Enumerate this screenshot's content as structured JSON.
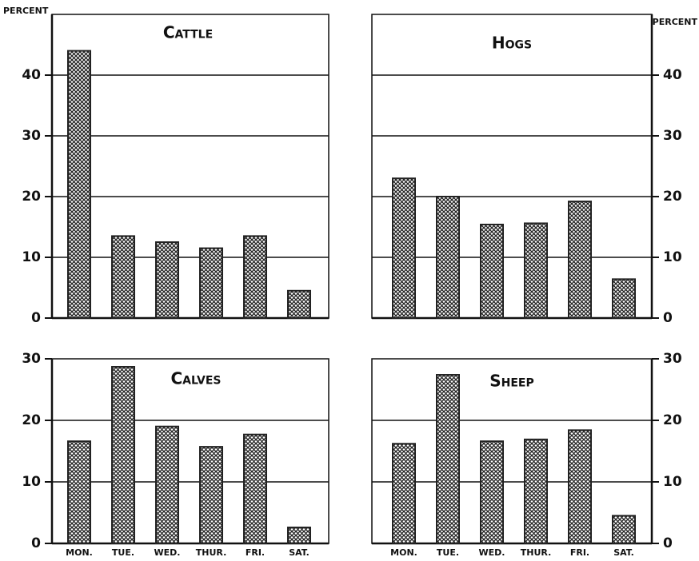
{
  "chart_data": [
    {
      "type": "bar",
      "title": "Cattle",
      "y_label": "PERCENT",
      "y_axis": "left",
      "values": [
        44,
        13.5,
        12.5,
        11.5,
        13.5,
        4.5
      ],
      "color": "#222222",
      "ylim": [
        0,
        50
      ],
      "yticks": [
        0,
        10,
        20,
        30,
        40
      ],
      "grid": true
    },
    {
      "type": "bar",
      "title": "Hogs",
      "y_label": "PERCENT",
      "y_axis": "right",
      "values": [
        23,
        20,
        15.4,
        15.6,
        19.2,
        6.4
      ],
      "color": "#222222",
      "ylim": [
        0,
        50
      ],
      "yticks": [
        0,
        10,
        20,
        30,
        40
      ],
      "grid": true
    },
    {
      "type": "bar",
      "title": "Calves",
      "y_axis": "left",
      "categories": [
        "MON.",
        "TUE.",
        "WED.",
        "THUR.",
        "FRI.",
        "SAT."
      ],
      "values": [
        16.6,
        28.7,
        19,
        15.7,
        17.7,
        2.6
      ],
      "color": "#222222",
      "ylim": [
        0,
        30
      ],
      "yticks": [
        0,
        10,
        20,
        30
      ],
      "grid": true
    },
    {
      "type": "bar",
      "title": "Sheep",
      "y_axis": "right",
      "categories": [
        "MON.",
        "TUE.",
        "WED.",
        "THUR.",
        "FRI.",
        "SAT."
      ],
      "values": [
        16.2,
        27.4,
        16.6,
        16.9,
        18.4,
        4.5
      ],
      "color": "#222222",
      "ylim": [
        0,
        30
      ],
      "yticks": [
        0,
        10,
        20,
        30
      ],
      "grid": true
    }
  ]
}
